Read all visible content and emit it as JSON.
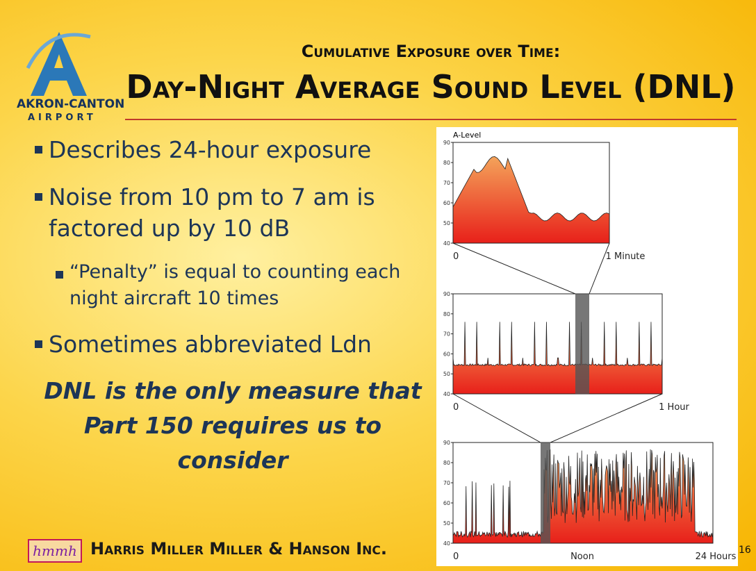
{
  "header": {
    "logo_name": "AKRON-CANTON",
    "logo_sub": "AIRPORT",
    "kicker": "Cumulative Exposure over Time:",
    "title": "Day-Night Average Sound Level (DNL)"
  },
  "bullets": [
    "Describes 24-hour exposure",
    "Noise from 10 pm to 7 am is factored up by 10 dB",
    "Sometimes abbreviated Ldn"
  ],
  "sub_bullet": "“Penalty” is equal to counting each night aircraft 10 times",
  "emphasis": "DNL is the only measure that Part 150 requires us to consider",
  "figure": {
    "y_label": "A-Level",
    "panels": [
      {
        "yticks": [
          90,
          80,
          70,
          60,
          50,
          40
        ],
        "x_labels": [
          "0",
          "1 Minute"
        ]
      },
      {
        "yticks": [
          90,
          80,
          70,
          60,
          50,
          40
        ],
        "x_labels": [
          "0",
          "1 Hour"
        ]
      },
      {
        "yticks": [
          90,
          80,
          70,
          60,
          50,
          40
        ],
        "x_labels": [
          "0",
          "Noon",
          "24 Hours"
        ]
      }
    ]
  },
  "footer": {
    "company": "Harris Miller Miller & Hanson Inc.",
    "logo": "hmmh",
    "page": "16"
  }
}
